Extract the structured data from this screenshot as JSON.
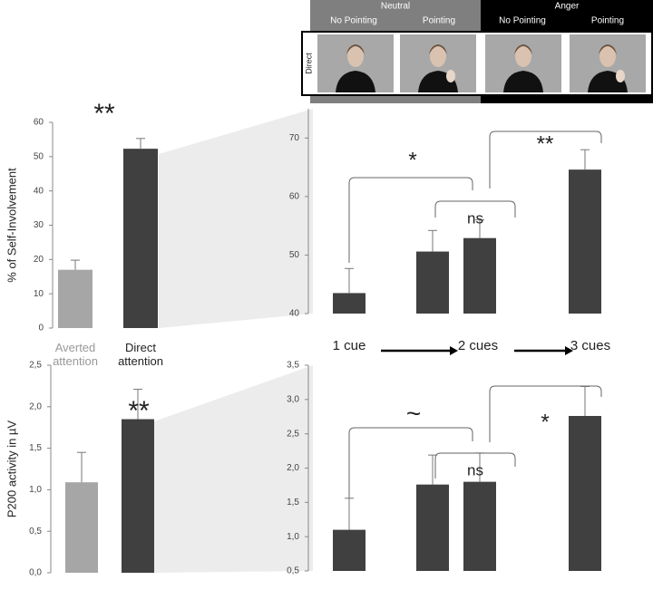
{
  "header": {
    "groups": [
      "Neutral",
      "Anger"
    ],
    "conditions": [
      "No Pointing",
      "Pointing",
      "No  Pointing",
      "Pointing"
    ],
    "row_label": "Direct"
  },
  "chart_data": [
    {
      "type": "bar",
      "y_label": "% of Self-Involvement",
      "categories": [
        "Averted attention",
        "Direct attention"
      ],
      "values": [
        17,
        52.3
      ],
      "errors": [
        2.8,
        3
      ],
      "colors": [
        "#a6a6a6",
        "#404040"
      ],
      "category_colors": [
        "#999999",
        "#222222"
      ],
      "ylim": [
        0,
        60
      ],
      "yticks": [
        0,
        10,
        20,
        30,
        40,
        50,
        60
      ],
      "annotations": [
        "**"
      ]
    },
    {
      "type": "bar",
      "categories": [
        null,
        null,
        null,
        null
      ],
      "x_labels": [
        "1 cue",
        "2 cues",
        "3 cues"
      ],
      "values": [
        43.5,
        50.6,
        52.9,
        64.6
      ],
      "errors": [
        4.2,
        3.6,
        3.1,
        3.4
      ],
      "colors": [
        "#404040",
        "#404040",
        "#404040",
        "#404040"
      ],
      "ylim": [
        40,
        75
      ],
      "yticks": [
        40,
        50,
        60,
        70
      ],
      "annotations": [
        "*",
        "ns",
        "**"
      ]
    },
    {
      "type": "bar",
      "y_label": "P200 activity in µV",
      "categories": [
        null,
        null
      ],
      "values": [
        1.09,
        1.85
      ],
      "errors": [
        0.36,
        0.36
      ],
      "colors": [
        "#a6a6a6",
        "#404040"
      ],
      "ylim": [
        0,
        2.5
      ],
      "yticks": [
        {
          "value": 0,
          "label": "0,0"
        },
        {
          "value": 0.5,
          "label": "0,5"
        },
        {
          "value": 1,
          "label": "1,0"
        },
        {
          "value": 1.5,
          "label": "1,5"
        },
        {
          "value": 2,
          "label": "2,0"
        },
        {
          "value": 2.5,
          "label": "2,5"
        }
      ],
      "annotations": [
        "**"
      ]
    },
    {
      "type": "bar",
      "categories": [
        null,
        null,
        null,
        null
      ],
      "values": [
        1.1,
        1.76,
        1.8,
        2.76
      ],
      "errors": [
        0.46,
        0.43,
        0.42,
        0.43
      ],
      "colors": [
        "#404040",
        "#404040",
        "#404040",
        "#404040"
      ],
      "ylim": [
        0.5,
        3.5
      ],
      "yticks": [
        {
          "value": 0.5,
          "label": "0,5"
        },
        {
          "value": 1,
          "label": "1,0"
        },
        {
          "value": 1.5,
          "label": "1,5"
        },
        {
          "value": 2,
          "label": "2,0"
        },
        {
          "value": 2.5,
          "label": "2,5"
        },
        {
          "value": 3,
          "label": "3,0"
        },
        {
          "value": 3.5,
          "label": "3,5"
        }
      ],
      "annotations": [
        "~",
        "ns",
        "*"
      ]
    }
  ]
}
